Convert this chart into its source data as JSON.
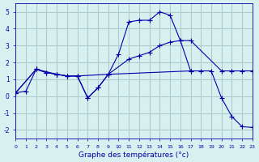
{
  "background_color": "#d9f0f0",
  "line_color": "#0000aa",
  "grid_color": "#aacccc",
  "xlabel": "Graphe des températures (°c)",
  "xlim": [
    0,
    23
  ],
  "ylim": [
    -2.5,
    5.5
  ],
  "yticks": [
    -2,
    -1,
    0,
    1,
    2,
    3,
    4,
    5
  ],
  "xticks": [
    0,
    1,
    2,
    3,
    4,
    5,
    6,
    7,
    8,
    9,
    10,
    11,
    12,
    13,
    14,
    15,
    16,
    17,
    18,
    19,
    20,
    21,
    22,
    23
  ],
  "series": [
    {
      "x": [
        0,
        1,
        2,
        3,
        4,
        5,
        6,
        7,
        8,
        9,
        10,
        11,
        12,
        13,
        14,
        15,
        16,
        17,
        18,
        19,
        20,
        21,
        22,
        23
      ],
      "y": [
        0.2,
        0.3,
        1.6,
        1.4,
        1.3,
        1.2,
        1.2,
        -0.1,
        0.5,
        1.3,
        2.5,
        4.4,
        4.5,
        4.5,
        5.0,
        4.8,
        3.3,
        1.5,
        1.5,
        1.5,
        -0.1,
        -1.2,
        -1.8,
        -1.85
      ]
    },
    {
      "x": [
        0,
        2,
        3,
        4,
        5,
        6,
        9,
        11,
        12,
        13,
        14,
        15,
        16,
        17,
        20,
        21,
        22,
        23
      ],
      "y": [
        0.2,
        1.6,
        1.4,
        1.3,
        1.2,
        1.2,
        1.3,
        2.2,
        2.4,
        2.6,
        3.0,
        3.2,
        3.3,
        3.3,
        1.5,
        1.5,
        1.5,
        1.5
      ]
    },
    {
      "x": [
        0,
        2,
        4,
        5,
        6,
        7,
        8,
        9,
        17
      ],
      "y": [
        0.2,
        1.6,
        1.3,
        1.2,
        1.2,
        -0.1,
        0.5,
        1.3,
        1.5
      ]
    }
  ]
}
